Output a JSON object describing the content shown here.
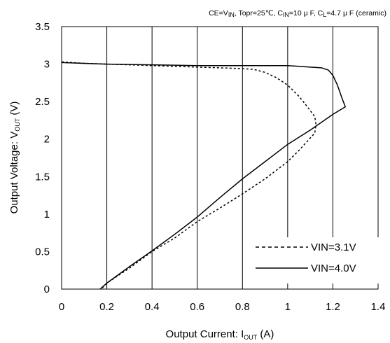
{
  "chart_data": {
    "type": "line",
    "title": "",
    "conditions": {
      "p1": "CE=V",
      "p1_sub": "IN",
      "p2": ", Topr=25℃, C",
      "p2_sub": "IN",
      "p3": "=10 μ F, C",
      "p3_sub": "L",
      "p4": "=4.7 μ F (ceramic)"
    },
    "xlabel": {
      "main": "Output Current: I",
      "sub": "OUT",
      "unit": " (A)"
    },
    "ylabel": {
      "main": "Output Voltage: V",
      "sub": "OUT",
      "unit": " (V)"
    },
    "xlim": [
      0,
      1.4
    ],
    "ylim": [
      0,
      3.5
    ],
    "x_ticks": [
      "0",
      "0.2",
      "0.4",
      "0.6",
      "0.8",
      "1",
      "1.2",
      "1.4"
    ],
    "y_ticks": [
      "0",
      "0.5",
      "1",
      "1.5",
      "2",
      "2.5",
      "3",
      "3.5"
    ],
    "grid": {
      "x": true,
      "y": false
    },
    "legend_position": "bottom-right",
    "series": [
      {
        "name": "VIN=3.1V",
        "style": "dashed",
        "color": "#000000",
        "points": [
          [
            0.0,
            3.03
          ],
          [
            0.1,
            3.01
          ],
          [
            0.2,
            3.0
          ],
          [
            0.3,
            2.99
          ],
          [
            0.4,
            2.98
          ],
          [
            0.5,
            2.97
          ],
          [
            0.6,
            2.96
          ],
          [
            0.7,
            2.95
          ],
          [
            0.8,
            2.94
          ],
          [
            0.85,
            2.93
          ],
          [
            0.9,
            2.89
          ],
          [
            0.95,
            2.82
          ],
          [
            1.0,
            2.72
          ],
          [
            1.05,
            2.57
          ],
          [
            1.09,
            2.42
          ],
          [
            1.12,
            2.3
          ],
          [
            1.125,
            2.2
          ],
          [
            1.12,
            2.08
          ],
          [
            1.05,
            1.85
          ],
          [
            1.0,
            1.7
          ],
          [
            0.9,
            1.47
          ],
          [
            0.8,
            1.27
          ],
          [
            0.7,
            1.08
          ],
          [
            0.6,
            0.9
          ],
          [
            0.5,
            0.68
          ],
          [
            0.4,
            0.5
          ],
          [
            0.3,
            0.28
          ],
          [
            0.2,
            0.08
          ],
          [
            0.175,
            0.0
          ]
        ]
      },
      {
        "name": "VIN=4.0V",
        "style": "solid",
        "color": "#000000",
        "points": [
          [
            0.0,
            3.02
          ],
          [
            0.1,
            3.01
          ],
          [
            0.2,
            3.0
          ],
          [
            0.4,
            2.99
          ],
          [
            0.6,
            2.98
          ],
          [
            0.8,
            2.98
          ],
          [
            1.0,
            2.98
          ],
          [
            1.05,
            2.97
          ],
          [
            1.1,
            2.96
          ],
          [
            1.15,
            2.95
          ],
          [
            1.18,
            2.92
          ],
          [
            1.2,
            2.85
          ],
          [
            1.22,
            2.72
          ],
          [
            1.24,
            2.55
          ],
          [
            1.255,
            2.43
          ],
          [
            1.2,
            2.33
          ],
          [
            1.1,
            2.12
          ],
          [
            1.0,
            1.93
          ],
          [
            0.9,
            1.7
          ],
          [
            0.8,
            1.47
          ],
          [
            0.7,
            1.22
          ],
          [
            0.6,
            0.96
          ],
          [
            0.5,
            0.73
          ],
          [
            0.4,
            0.51
          ],
          [
            0.3,
            0.3
          ],
          [
            0.2,
            0.08
          ],
          [
            0.17,
            0.0
          ]
        ]
      }
    ]
  }
}
